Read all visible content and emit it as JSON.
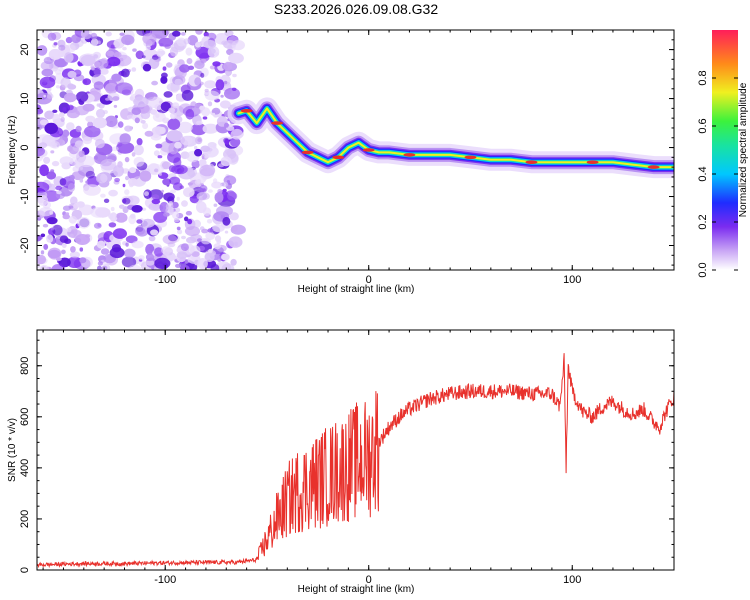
{
  "title": "S233.2026.026.09.08.G32",
  "colorbar": {
    "label": "Normalized spectral amplitude",
    "range": [
      0,
      1
    ],
    "ticks": [
      0.0,
      0.2,
      0.4,
      0.6,
      0.8
    ],
    "tick_labels": [
      "0.0",
      "0.2",
      "0.4",
      "0.6",
      "0.8"
    ]
  },
  "colors": {
    "snr_line": "#e8312c",
    "noise": "#7b2cf0",
    "track_core": "#e8312c"
  },
  "chart_data": [
    {
      "type": "heatmap",
      "title": "S233.2026.026.09.08.G32",
      "xlabel": "Height of straight line (km)",
      "ylabel": "Frequency (Hz)",
      "xlim": [
        -163,
        150
      ],
      "ylim": [
        -25,
        24
      ],
      "xticks": [
        -100,
        0,
        100
      ],
      "xtick_labels": [
        "-100",
        "0",
        "100"
      ],
      "yticks": [
        20,
        10,
        0,
        -10,
        -20
      ],
      "ytick_labels": [
        "20",
        "10",
        "0",
        "-10",
        "-20"
      ],
      "noise_region": {
        "x": [
          -163,
          -64
        ],
        "y": [
          -25,
          24
        ]
      },
      "track": [
        {
          "x": -64,
          "y": 7
        },
        {
          "x": -60,
          "y": 7.5
        },
        {
          "x": -55,
          "y": 5
        },
        {
          "x": -50,
          "y": 8
        },
        {
          "x": -45,
          "y": 5
        },
        {
          "x": -40,
          "y": 3
        },
        {
          "x": -35,
          "y": 1
        },
        {
          "x": -30,
          "y": -1
        },
        {
          "x": -25,
          "y": -2
        },
        {
          "x": -20,
          "y": -3
        },
        {
          "x": -15,
          "y": -2
        },
        {
          "x": -10,
          "y": 0
        },
        {
          "x": -5,
          "y": 1
        },
        {
          "x": 0,
          "y": -0.5
        },
        {
          "x": 5,
          "y": -1
        },
        {
          "x": 10,
          "y": -1
        },
        {
          "x": 20,
          "y": -1.5
        },
        {
          "x": 30,
          "y": -1.5
        },
        {
          "x": 40,
          "y": -1.5
        },
        {
          "x": 50,
          "y": -2
        },
        {
          "x": 60,
          "y": -2.5
        },
        {
          "x": 70,
          "y": -2.5
        },
        {
          "x": 80,
          "y": -3
        },
        {
          "x": 90,
          "y": -3
        },
        {
          "x": 100,
          "y": -3
        },
        {
          "x": 110,
          "y": -3
        },
        {
          "x": 120,
          "y": -3
        },
        {
          "x": 130,
          "y": -3.5
        },
        {
          "x": 140,
          "y": -4
        },
        {
          "x": 150,
          "y": -4
        }
      ]
    },
    {
      "type": "line",
      "xlabel": "Height of straight line (km)",
      "ylabel": "SNR (10 * v/v)",
      "xlim": [
        -163,
        150
      ],
      "ylim": [
        0,
        940
      ],
      "xticks": [
        -100,
        0,
        100
      ],
      "xtick_labels": [
        "-100",
        "0",
        "100"
      ],
      "yticks": [
        0,
        200,
        400,
        600,
        800
      ],
      "ytick_labels": [
        "0",
        "200",
        "400",
        "600",
        "800"
      ],
      "x": [
        -163,
        -140,
        -120,
        -100,
        -80,
        -65,
        -55,
        -50,
        -45,
        -40,
        -35,
        -30,
        -25,
        -20,
        -15,
        -10,
        -5,
        0,
        5,
        10,
        15,
        20,
        25,
        30,
        40,
        50,
        60,
        70,
        80,
        90,
        94,
        96,
        97,
        98,
        100,
        105,
        110,
        115,
        120,
        125,
        130,
        135,
        140,
        143,
        146,
        150
      ],
      "y": [
        20,
        25,
        25,
        28,
        30,
        30,
        40,
        120,
        200,
        270,
        310,
        330,
        350,
        370,
        390,
        410,
        430,
        440,
        500,
        560,
        600,
        630,
        650,
        670,
        690,
        700,
        700,
        700,
        690,
        690,
        640,
        820,
        400,
        800,
        700,
        620,
        600,
        640,
        660,
        630,
        610,
        630,
        580,
        560,
        620,
        680
      ]
    }
  ]
}
